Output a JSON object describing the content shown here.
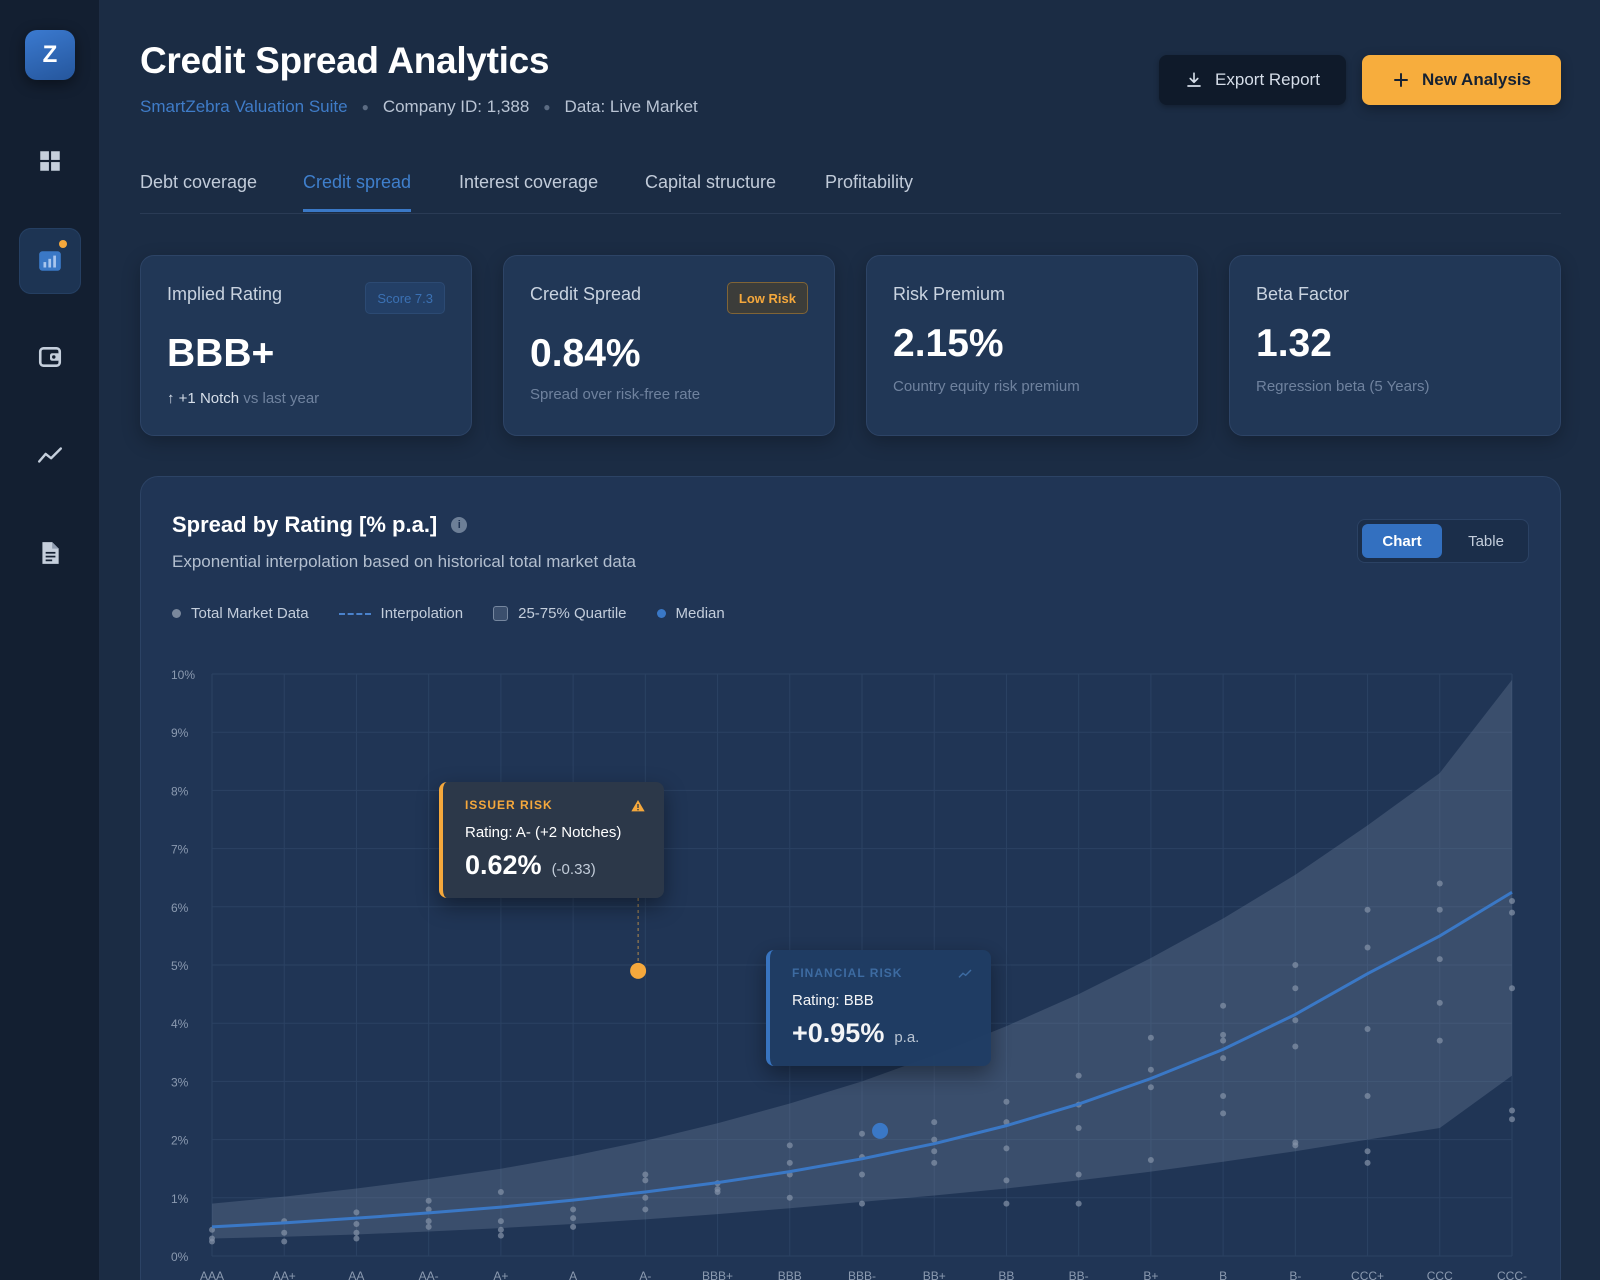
{
  "app": {
    "logo_letter": "Z",
    "title": "Credit Spread Analytics"
  },
  "header": {
    "suite": "SmartZebra Valuation Suite",
    "company": "Company ID: 1,388",
    "data_source": "Data: Live Market",
    "export_label": "Export Report",
    "new_label": "New Analysis"
  },
  "sidebar": {
    "items": [
      {
        "icon": "dashboard-grid-icon"
      },
      {
        "icon": "bar-chart-icon",
        "active": true,
        "notification": true
      },
      {
        "icon": "wallet-icon"
      },
      {
        "icon": "trend-line-icon"
      },
      {
        "icon": "document-icon"
      }
    ]
  },
  "tabs": [
    {
      "label": "Debt coverage"
    },
    {
      "label": "Credit spread",
      "active": true
    },
    {
      "label": "Interest coverage"
    },
    {
      "label": "Capital structure"
    },
    {
      "label": "Profitability"
    }
  ],
  "kpis": [
    {
      "label": "Implied Rating",
      "value": "BBB+",
      "badge": "Score 7.3",
      "delta": "+1 Notch",
      "sub": "vs last year"
    },
    {
      "label": "Credit Spread",
      "value": "0.84%",
      "badge": "Low Risk",
      "sub": "Spread over risk-free rate"
    },
    {
      "label": "Risk Premium",
      "value": "2.15%",
      "sub": "Country equity risk premium"
    },
    {
      "label": "Beta Factor",
      "value": "1.32",
      "sub": "Regression beta (5 Years)"
    }
  ],
  "panel": {
    "title": "Spread by Rating [% p.a.]",
    "subtitle": "Exponential interpolation based on historical total market data",
    "toggle": {
      "chart": "Chart",
      "table": "Table",
      "selected": "Chart"
    },
    "legend": [
      {
        "label": "Total Market Data",
        "color": "#7a889c"
      },
      {
        "label": "Interpolation",
        "color": "#4a82cc"
      },
      {
        "label": "25-75% Quartile",
        "color": "#76879f"
      },
      {
        "label": "Median",
        "color": "#3a78c6"
      }
    ]
  },
  "tooltips": {
    "issuer": {
      "kicker": "ISSUER RISK",
      "rating": "Rating: A- (+2 Notches)",
      "value": "0.62%",
      "note": "(-0.33)",
      "color": "#f5a83c"
    },
    "financial": {
      "kicker": "FINANCIAL RISK",
      "rating": "Rating: BBB",
      "value": "+0.95%",
      "note": "p.a.",
      "color": "#3a78c6"
    }
  },
  "chart_data": {
    "type": "line",
    "categories": [
      "AAA",
      "AA+",
      "AA",
      "AA-",
      "A+",
      "A",
      "A-",
      "BBB+",
      "BBB",
      "BBB-",
      "BB+",
      "BB",
      "BB-",
      "B+",
      "B",
      "B-",
      "CCC+",
      "CCC",
      "CCC-"
    ],
    "y_ticks": [
      "0%",
      "1%",
      "2%",
      "3%",
      "4%",
      "5%",
      "6%",
      "7%",
      "8%",
      "9%",
      "10%"
    ],
    "ylim": [
      0,
      10
    ],
    "grid": true,
    "series": [
      {
        "name": "Interpolation",
        "values": [
          0.5,
          0.57,
          0.65,
          0.74,
          0.84,
          0.96,
          1.1,
          1.26,
          1.45,
          1.67,
          1.93,
          2.24,
          2.61,
          3.05,
          3.55,
          4.15,
          4.85,
          5.5,
          6.25
        ]
      },
      {
        "name": "25-75% Quartile",
        "lower": [
          0.3,
          0.33,
          0.37,
          0.42,
          0.48,
          0.55,
          0.63,
          0.72,
          0.82,
          0.93,
          1.04,
          1.16,
          1.3,
          1.45,
          1.62,
          1.8,
          2.0,
          2.2,
          3.1
        ],
        "upper": [
          0.9,
          1.02,
          1.16,
          1.32,
          1.5,
          1.72,
          1.98,
          2.28,
          2.62,
          3.0,
          3.45,
          3.95,
          4.5,
          5.12,
          5.8,
          6.55,
          7.4,
          8.3,
          9.9
        ]
      }
    ],
    "scatter": [
      [
        0,
        0.3
      ],
      [
        0,
        0.45
      ],
      [
        0,
        0.25
      ],
      [
        1,
        0.6
      ],
      [
        1,
        0.4
      ],
      [
        1,
        0.25
      ],
      [
        2,
        0.75
      ],
      [
        2,
        0.55
      ],
      [
        2,
        0.4
      ],
      [
        2,
        0.3
      ],
      [
        3,
        0.95
      ],
      [
        3,
        0.8
      ],
      [
        3,
        0.6
      ],
      [
        3,
        0.5
      ],
      [
        4,
        1.1
      ],
      [
        4,
        0.6
      ],
      [
        4,
        0.45
      ],
      [
        4,
        0.35
      ],
      [
        5,
        0.8
      ],
      [
        5,
        0.65
      ],
      [
        5,
        0.5
      ],
      [
        6,
        1.4
      ],
      [
        6,
        1.3
      ],
      [
        6,
        1.0
      ],
      [
        6,
        0.8
      ],
      [
        7,
        1.25
      ],
      [
        7,
        1.15
      ],
      [
        7,
        1.1
      ],
      [
        8,
        1.9
      ],
      [
        8,
        1.6
      ],
      [
        8,
        1.4
      ],
      [
        8,
        1.0
      ],
      [
        9,
        2.1
      ],
      [
        9,
        1.7
      ],
      [
        9,
        1.4
      ],
      [
        9,
        0.9
      ],
      [
        10,
        2.3
      ],
      [
        10,
        2.0
      ],
      [
        10,
        1.6
      ],
      [
        10,
        1.8
      ],
      [
        11,
        2.65
      ],
      [
        11,
        2.3
      ],
      [
        11,
        1.85
      ],
      [
        11,
        1.3
      ],
      [
        11,
        0.9
      ],
      [
        12,
        3.1
      ],
      [
        12,
        2.6
      ],
      [
        12,
        2.2
      ],
      [
        12,
        1.4
      ],
      [
        12,
        0.9
      ],
      [
        13,
        3.75
      ],
      [
        13,
        3.2
      ],
      [
        13,
        2.9
      ],
      [
        13,
        1.65
      ],
      [
        14,
        4.3
      ],
      [
        14,
        3.8
      ],
      [
        14,
        3.7
      ],
      [
        14,
        3.4
      ],
      [
        14,
        2.75
      ],
      [
        14,
        2.45
      ],
      [
        15,
        5.0
      ],
      [
        15,
        4.6
      ],
      [
        15,
        4.05
      ],
      [
        15,
        3.6
      ],
      [
        15,
        1.9
      ],
      [
        15,
        1.95
      ],
      [
        16,
        5.95
      ],
      [
        16,
        5.3
      ],
      [
        16,
        3.9
      ],
      [
        16,
        2.75
      ],
      [
        16,
        1.8
      ],
      [
        16,
        1.6
      ],
      [
        17,
        6.4
      ],
      [
        17,
        5.95
      ],
      [
        17,
        5.1
      ],
      [
        17,
        4.35
      ],
      [
        17,
        3.7
      ],
      [
        18,
        6.1
      ],
      [
        18,
        5.9
      ],
      [
        18,
        4.6
      ],
      [
        18,
        2.5
      ],
      [
        18,
        2.35
      ]
    ],
    "highlights": [
      {
        "name": "Issuer Risk",
        "x": 5.9,
        "y": 4.9,
        "color": "#f5a83c"
      },
      {
        "name": "Financial Risk",
        "x": 9.25,
        "y": 2.15,
        "color": "#3a78c6"
      }
    ]
  }
}
